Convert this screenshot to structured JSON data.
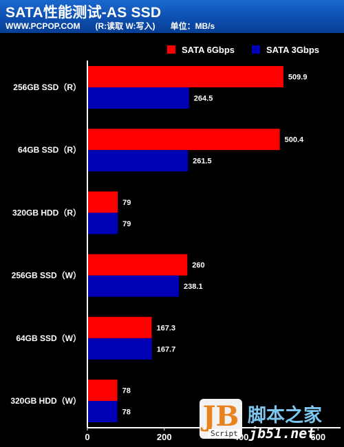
{
  "header": {
    "title": "SATA性能测试-AS SSD",
    "site": "WWW.PCPOP.COM",
    "legend_note": "(R:读取  W:写入)",
    "unit": "单位：MB/s"
  },
  "colors": {
    "background": "#000000",
    "header": "#0d4fb0",
    "sata6": "#ff0000",
    "sata3": "#0000b4",
    "axis": "#ffffff"
  },
  "watermark": {
    "logo_text": "JB",
    "script_label": "Script",
    "brand": "脚本之家",
    "url": "jb51.net"
  },
  "chart_data": {
    "type": "bar",
    "orientation": "horizontal",
    "title": "SATA性能测试-AS SSD",
    "categories": [
      "256GB SSD（R）",
      "64GB SSD（R）",
      "320GB HDD（R）",
      "256GB SSD（W）",
      "64GB SSD（W）",
      "320GB HDD（W）"
    ],
    "series": [
      {
        "name": "SATA 6Gbps",
        "color": "#ff0000",
        "values": [
          509.9,
          500.4,
          79,
          260,
          167.3,
          78
        ]
      },
      {
        "name": "SATA 3Gbps",
        "color": "#0000b4",
        "values": [
          264.5,
          261.5,
          79,
          238.1,
          167.7,
          78
        ]
      }
    ],
    "value_labels": [
      [
        "509.9",
        "500.4",
        "79",
        "260",
        "167.3",
        "78"
      ],
      [
        "264.5",
        "261.5",
        "79",
        "238.1",
        "167.7",
        "78"
      ]
    ],
    "xlim": [
      0,
      600
    ],
    "xticks": [
      0,
      200,
      400,
      600
    ],
    "legend_position": "top-right",
    "grid": false
  }
}
